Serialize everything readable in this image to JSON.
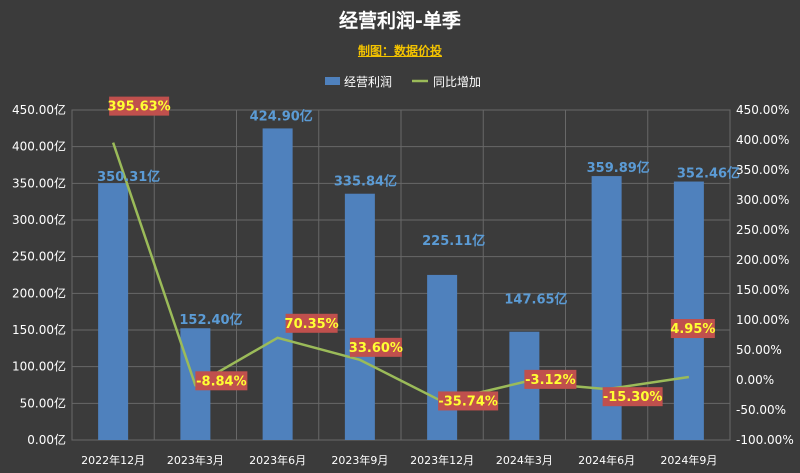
{
  "title": "经营利润-单季",
  "subtitle": "制图：数据价投",
  "colors": {
    "bar": "#4f81bd",
    "line": "#9bbb59",
    "bar_label": "#5b9bd5",
    "pct_label": "#ffff33",
    "pct_box": "#c0504d"
  },
  "chart_data": {
    "type": "bar",
    "categories": [
      "2022年12月",
      "2023年3月",
      "2023年6月",
      "2023年9月",
      "2023年12月",
      "2024年3月",
      "2024年6月",
      "2024年9月"
    ],
    "series": [
      {
        "name": "经营利润",
        "type": "bar",
        "axis": "left",
        "values": [
          350.31,
          152.4,
          424.9,
          335.84,
          225.11,
          147.65,
          359.89,
          352.46
        ],
        "labels": [
          "350.31亿",
          "152.40亿",
          "424.90亿",
          "335.84亿",
          "225.11亿",
          "147.65亿",
          "359.89亿",
          "352.46亿"
        ]
      },
      {
        "name": "同比增加",
        "type": "line",
        "axis": "right",
        "values": [
          395.63,
          -8.84,
          70.35,
          33.6,
          -35.74,
          -3.12,
          -15.3,
          4.95
        ],
        "labels": [
          "395.63%",
          "-8.84%",
          "70.35%",
          "33.60%",
          "-35.74%",
          "-3.12%",
          "-15.30%",
          "4.95%"
        ]
      }
    ],
    "y_left": {
      "min": 0,
      "max": 450,
      "step": 50,
      "ticks": [
        "0.00亿",
        "50.00亿",
        "100.00亿",
        "150.00亿",
        "200.00亿",
        "250.00亿",
        "300.00亿",
        "350.00亿",
        "400.00亿",
        "450.00亿"
      ]
    },
    "y_right": {
      "min": -100,
      "max": 450,
      "step": 50,
      "ticks": [
        "-100.00%",
        "-50.00%",
        "0.00%",
        "50.00%",
        "100.00%",
        "150.00%",
        "200.00%",
        "250.00%",
        "300.00%",
        "350.00%",
        "400.00%",
        "450.00%"
      ]
    },
    "legend_position": "top-center",
    "grid": true
  }
}
